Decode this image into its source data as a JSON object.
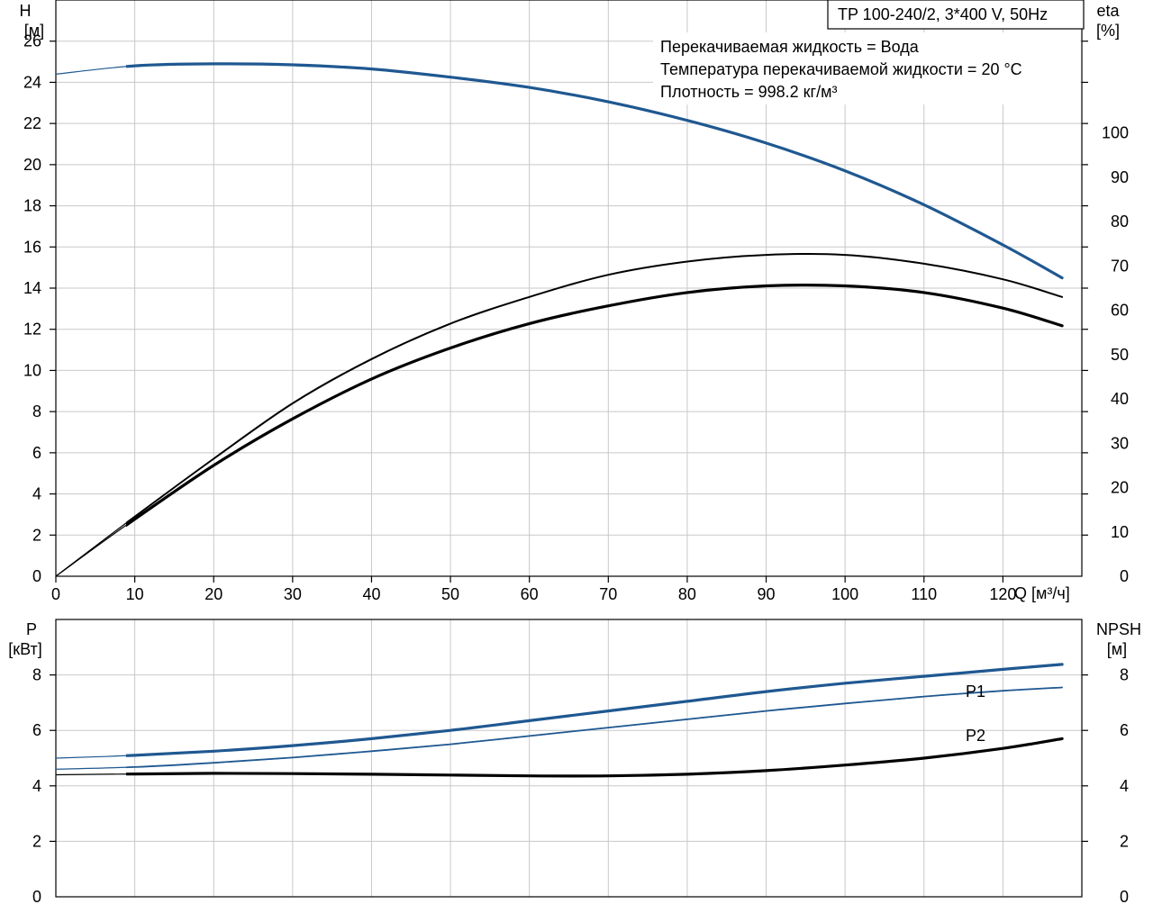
{
  "title_box": "TP 100-240/2, 3*400 V, 50Hz",
  "info_lines": [
    "Перекачиваемая жидкость = Вода",
    "Температура перекачиваемой жидкости = 20 °C",
    "Плотность = 998.2 кг/м³"
  ],
  "colors": {
    "blue": "#1f5891",
    "black": "#000000",
    "grid": "#c8c8c8"
  },
  "chart_data": [
    {
      "type": "line",
      "name_key": "upper",
      "xlabel": "Q [м³/ч]",
      "ylabel": [
        "H",
        "[м]"
      ],
      "y2label": [
        "eta",
        "[%]"
      ],
      "xlim": [
        0,
        130
      ],
      "ylim": [
        0,
        28
      ],
      "y2lim": [
        0,
        130
      ],
      "xticks": [
        0,
        10,
        20,
        30,
        40,
        50,
        60,
        70,
        80,
        90,
        100,
        110,
        120
      ],
      "yticks": [
        0,
        2,
        4,
        6,
        8,
        10,
        12,
        14,
        16,
        18,
        20,
        22,
        24,
        26
      ],
      "y2ticks": [
        0,
        10,
        20,
        30,
        40,
        50,
        60,
        70,
        80,
        90,
        100
      ],
      "grid": true,
      "series": [
        {
          "axis": "y",
          "color": "#1f5891",
          "width": 3.2,
          "x": [
            0,
            10,
            20,
            30,
            40,
            50,
            60,
            70,
            80,
            90,
            100,
            110,
            120,
            127.5
          ],
          "values": [
            24.4,
            24.8,
            24.9,
            24.85,
            24.65,
            24.25,
            23.75,
            23.05,
            22.15,
            21.05,
            19.7,
            18.05,
            16.1,
            14.5
          ],
          "solid_from": 8.9
        },
        {
          "axis": "y2",
          "color": "#000000",
          "width": 2.0,
          "x": [
            0,
            8.9,
            20,
            30,
            40,
            50,
            60,
            70,
            80,
            90,
            100,
            110,
            120,
            127.5
          ],
          "values": [
            0,
            12,
            26.5,
            39,
            49,
            57,
            63,
            68,
            71,
            72.5,
            72.5,
            70.5,
            67,
            63
          ],
          "solid_from": 8.9
        },
        {
          "axis": "y2",
          "color": "#000000",
          "width": 3.2,
          "x": [
            0,
            8.9,
            20,
            30,
            40,
            50,
            60,
            70,
            80,
            90,
            100,
            110,
            120,
            127.5
          ],
          "values": [
            0,
            11.5,
            25,
            35.5,
            44.5,
            51.5,
            57,
            61,
            64,
            65.5,
            65.5,
            64,
            60.5,
            56.5
          ],
          "solid_from": 8.9
        }
      ]
    },
    {
      "type": "line",
      "name_key": "lower",
      "ylabel": [
        "P",
        "[кВт]"
      ],
      "y2label": [
        "NPSH",
        "[м]"
      ],
      "xlim": [
        0,
        130
      ],
      "ylim": [
        0,
        10
      ],
      "y2lim": [
        0,
        10
      ],
      "yticks": [
        0,
        2,
        4,
        6,
        8
      ],
      "y2ticks": [
        0,
        2,
        4,
        6,
        8
      ],
      "grid": true,
      "series": [
        {
          "name": "P1",
          "axis": "y",
          "color": "#1f5891",
          "width": 3.2,
          "x": [
            0,
            10,
            20,
            30,
            40,
            50,
            60,
            70,
            80,
            90,
            100,
            110,
            120,
            127.5
          ],
          "values": [
            5.0,
            5.1,
            5.25,
            5.45,
            5.7,
            6.0,
            6.35,
            6.7,
            7.05,
            7.4,
            7.7,
            7.95,
            8.2,
            8.38
          ],
          "solid_from": 8.9
        },
        {
          "name": "P2",
          "axis": "y",
          "color": "#1f5891",
          "width": 1.8,
          "x": [
            0,
            10,
            20,
            30,
            40,
            50,
            60,
            70,
            80,
            90,
            100,
            110,
            120,
            127.5
          ],
          "values": [
            4.6,
            4.68,
            4.83,
            5.02,
            5.25,
            5.5,
            5.8,
            6.1,
            6.4,
            6.7,
            6.97,
            7.22,
            7.43,
            7.55
          ],
          "solid_from": 8.9
        },
        {
          "axis": "y2",
          "color": "#000000",
          "width": 3.2,
          "x": [
            0,
            10,
            20,
            30,
            40,
            50,
            60,
            70,
            80,
            90,
            100,
            110,
            120,
            127.5
          ],
          "values": [
            4.4,
            4.43,
            4.45,
            4.44,
            4.42,
            4.39,
            4.36,
            4.36,
            4.42,
            4.55,
            4.75,
            5.0,
            5.35,
            5.7
          ],
          "solid_from": 8.9
        }
      ]
    }
  ]
}
